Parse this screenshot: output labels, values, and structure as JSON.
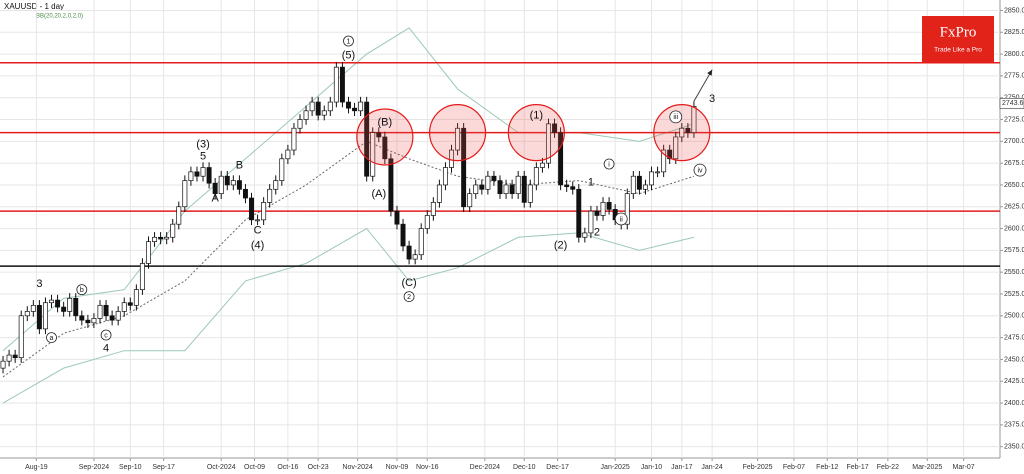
{
  "chart_data": {
    "type": "candlestick",
    "title": "XAUUSD - 1 day",
    "subtitle": "BB(20,20,2,0,2,0)",
    "brand": {
      "name": "FxPro",
      "tagline": "Trade Like a Pro"
    },
    "open": [
      2440,
      2448,
      2455,
      2452,
      2500,
      2505,
      2512,
      2485,
      2515,
      2518,
      2510,
      2505,
      2520,
      2500,
      2495,
      2492,
      2497,
      2512,
      2500,
      2495,
      2505,
      2515,
      2512,
      2530,
      2560,
      2585,
      2590,
      2588,
      2590,
      2605,
      2625,
      2655,
      2665,
      2660,
      2670,
      2652,
      2640,
      2660,
      2650,
      2655,
      2645,
      2635,
      2610,
      2610,
      2630,
      2645,
      2655,
      2680,
      2690,
      2715,
      2725,
      2735,
      2745,
      2730,
      2735,
      2745,
      2785,
      2745,
      2738,
      2735,
      2745,
      2660,
      2710,
      2705,
      2680,
      2620,
      2605,
      2580,
      2565,
      2570,
      2600,
      2615,
      2630,
      2650,
      2670,
      2690,
      2715,
      2625,
      2640,
      2650,
      2645,
      2660,
      2655,
      2640,
      2650,
      2640,
      2660,
      2630,
      2650,
      2670,
      2675,
      2720,
      2710,
      2650,
      2648,
      2645,
      2590,
      2595,
      2620,
      2615,
      2630,
      2622,
      2610,
      2605,
      2640,
      2660,
      2645,
      2650,
      2665,
      2665,
      2690,
      2680,
      2705,
      2715,
      2710
    ],
    "high": [
      2454,
      2461,
      2461,
      2506,
      2511,
      2518,
      2518,
      2521,
      2524,
      2524,
      2516,
      2526,
      2526,
      2506,
      2501,
      2503,
      2518,
      2518,
      2506,
      2511,
      2521,
      2521,
      2536,
      2566,
      2591,
      2596,
      2596,
      2596,
      2611,
      2631,
      2661,
      2671,
      2671,
      2676,
      2676,
      2658,
      2666,
      2666,
      2661,
      2661,
      2651,
      2641,
      2616,
      2636,
      2651,
      2661,
      2686,
      2696,
      2721,
      2731,
      2741,
      2751,
      2751,
      2741,
      2751,
      2791,
      2791,
      2751,
      2744,
      2751,
      2751,
      2716,
      2716,
      2711,
      2686,
      2626,
      2611,
      2586,
      2576,
      2606,
      2621,
      2636,
      2656,
      2676,
      2696,
      2721,
      2721,
      2646,
      2656,
      2656,
      2666,
      2666,
      2661,
      2656,
      2656,
      2666,
      2666,
      2656,
      2676,
      2681,
      2726,
      2726,
      2716,
      2656,
      2654,
      2651,
      2601,
      2626,
      2626,
      2636,
      2636,
      2628,
      2616,
      2646,
      2666,
      2666,
      2656,
      2671,
      2671,
      2696,
      2696,
      2711,
      2721,
      2721,
      2746
    ],
    "low": [
      2434,
      2442,
      2446,
      2446,
      2494,
      2499,
      2479,
      2479,
      2509,
      2504,
      2499,
      2499,
      2494,
      2489,
      2486,
      2486,
      2491,
      2494,
      2489,
      2489,
      2499,
      2506,
      2506,
      2524,
      2554,
      2579,
      2582,
      2582,
      2584,
      2599,
      2619,
      2649,
      2654,
      2654,
      2646,
      2634,
      2634,
      2644,
      2644,
      2639,
      2629,
      2604,
      2604,
      2604,
      2624,
      2639,
      2649,
      2674,
      2684,
      2709,
      2719,
      2729,
      2724,
      2724,
      2729,
      2739,
      2739,
      2732,
      2729,
      2729,
      2654,
      2654,
      2699,
      2674,
      2614,
      2599,
      2574,
      2559,
      2559,
      2564,
      2594,
      2609,
      2624,
      2644,
      2664,
      2684,
      2619,
      2619,
      2634,
      2639,
      2639,
      2649,
      2634,
      2634,
      2634,
      2634,
      2624,
      2624,
      2644,
      2664,
      2669,
      2704,
      2644,
      2642,
      2639,
      2584,
      2584,
      2589,
      2609,
      2609,
      2616,
      2604,
      2599,
      2599,
      2634,
      2639,
      2639,
      2644,
      2659,
      2659,
      2674,
      2674,
      2699,
      2704,
      2704
    ],
    "close": [
      2448,
      2455,
      2452,
      2500,
      2505,
      2512,
      2485,
      2515,
      2518,
      2510,
      2505,
      2520,
      2500,
      2495,
      2492,
      2497,
      2512,
      2500,
      2495,
      2505,
      2515,
      2512,
      2530,
      2560,
      2585,
      2590,
      2588,
      2590,
      2605,
      2625,
      2655,
      2665,
      2660,
      2670,
      2652,
      2640,
      2660,
      2650,
      2655,
      2645,
      2635,
      2610,
      2610,
      2630,
      2645,
      2655,
      2680,
      2690,
      2715,
      2725,
      2735,
      2745,
      2730,
      2735,
      2745,
      2785,
      2745,
      2738,
      2735,
      2745,
      2660,
      2710,
      2705,
      2680,
      2620,
      2605,
      2580,
      2565,
      2570,
      2600,
      2615,
      2630,
      2650,
      2670,
      2690,
      2715,
      2625,
      2640,
      2650,
      2645,
      2660,
      2655,
      2640,
      2650,
      2640,
      2660,
      2630,
      2650,
      2670,
      2675,
      2720,
      2710,
      2650,
      2648,
      2645,
      2590,
      2595,
      2620,
      2615,
      2630,
      2622,
      2610,
      2605,
      2640,
      2660,
      2645,
      2650,
      2665,
      2665,
      2690,
      2680,
      2705,
      2715,
      2710,
      2740
    ],
    "bands": {
      "x": [
        0,
        10,
        20,
        30,
        40,
        50,
        60,
        67,
        75,
        85,
        95,
        105,
        114
      ],
      "upper": [
        2460,
        2520,
        2530,
        2620,
        2680,
        2740,
        2800,
        2830,
        2760,
        2710,
        2710,
        2700,
        2720
      ],
      "middle": [
        2430,
        2480,
        2500,
        2540,
        2610,
        2650,
        2700,
        2680,
        2660,
        2650,
        2655,
        2640,
        2660
      ],
      "lower": [
        2400,
        2440,
        2460,
        2460,
        2540,
        2560,
        2600,
        2540,
        2555,
        2590,
        2595,
        2575,
        2590
      ]
    },
    "levels": [
      {
        "value": 2790,
        "color": "#e31b1b"
      },
      {
        "value": 2710,
        "color": "#e31b1b"
      },
      {
        "value": 2620,
        "color": "#e31b1b"
      },
      {
        "value": 2557,
        "color": "#111111"
      }
    ],
    "highlights": [
      {
        "x": 63,
        "y": 2705
      },
      {
        "x": 75,
        "y": 2710
      },
      {
        "x": 88,
        "y": 2710
      },
      {
        "x": 112,
        "y": 2710
      }
    ],
    "arrow": {
      "x": [
        114,
        117
      ],
      "y": [
        2746,
        2782
      ]
    },
    "annotations": [
      {
        "text": "3",
        "x": 6,
        "y": 2537
      },
      {
        "text": "a",
        "x": 8,
        "y": 2475,
        "circled": true
      },
      {
        "text": "b",
        "x": 13,
        "y": 2530,
        "circled": true
      },
      {
        "text": "c",
        "x": 17,
        "y": 2478,
        "circled": true
      },
      {
        "text": "4",
        "x": 17,
        "y": 2463
      },
      {
        "text": "(3)",
        "x": 33,
        "y": 2697
      },
      {
        "text": "5",
        "x": 33,
        "y": 2683
      },
      {
        "text": "A",
        "x": 35,
        "y": 2635
      },
      {
        "text": "B",
        "x": 39,
        "y": 2673
      },
      {
        "text": "C",
        "x": 42,
        "y": 2598
      },
      {
        "text": "(4)",
        "x": 42,
        "y": 2581
      },
      {
        "text": "1",
        "x": 57,
        "y": 2815,
        "circled": true
      },
      {
        "text": "(5)",
        "x": 57,
        "y": 2799
      },
      {
        "text": "(B)",
        "x": 63,
        "y": 2722
      },
      {
        "text": "(A)",
        "x": 62,
        "y": 2640
      },
      {
        "text": "(C)",
        "x": 67,
        "y": 2538
      },
      {
        "text": "2",
        "x": 67,
        "y": 2522,
        "circled": true
      },
      {
        "text": "(1)",
        "x": 88,
        "y": 2730
      },
      {
        "text": "(2)",
        "x": 92,
        "y": 2581
      },
      {
        "text": "1",
        "x": 97,
        "y": 2653
      },
      {
        "text": "2",
        "x": 98,
        "y": 2596
      },
      {
        "text": "i",
        "x": 100,
        "y": 2674,
        "circled": true
      },
      {
        "text": "ii",
        "x": 102,
        "y": 2611,
        "circled": true
      },
      {
        "text": "iii",
        "x": 111,
        "y": 2728,
        "circled": true
      },
      {
        "text": "iv",
        "x": 115,
        "y": 2667,
        "circled": true
      },
      {
        "text": "3",
        "x": 117,
        "y": 2749
      }
    ],
    "last_price": {
      "value": 2743.6,
      "label": "2743.60"
    },
    "xlim": [
      -0.5,
      164.5
    ],
    "ylim": [
      2337,
      2862
    ],
    "xticks": [
      {
        "value": 5.5,
        "label": "Aug-19"
      },
      {
        "value": 15,
        "label": "Sep-2024"
      },
      {
        "value": 21,
        "label": "Sep-10"
      },
      {
        "value": 26.5,
        "label": "Sep-17"
      },
      {
        "value": 36,
        "label": "Oct-2024"
      },
      {
        "value": 41.5,
        "label": "Oct-09"
      },
      {
        "value": 47,
        "label": "Oct-16"
      },
      {
        "value": 52,
        "label": "Oct-23"
      },
      {
        "value": 58.5,
        "label": "Nov-2024"
      },
      {
        "value": 65,
        "label": "Nov-09"
      },
      {
        "value": 70,
        "label": "Nov-16"
      },
      {
        "value": 79.5,
        "label": "Dec-2024"
      },
      {
        "value": 86,
        "label": "Dec-10"
      },
      {
        "value": 91.5,
        "label": "Dec-17"
      },
      {
        "value": 101,
        "label": "Jan-2025"
      },
      {
        "value": 107,
        "label": "Jan-10"
      },
      {
        "value": 112,
        "label": "Jan-17"
      },
      {
        "value": 117,
        "label": "Jan-24"
      },
      {
        "value": 124.5,
        "label": "Feb-2025"
      },
      {
        "value": 130.5,
        "label": "Feb-07"
      },
      {
        "value": 136,
        "label": "Feb-12"
      },
      {
        "value": 141,
        "label": "Feb-17"
      },
      {
        "value": 146,
        "label": "Feb-22"
      },
      {
        "value": 152.5,
        "label": "Mar-2025"
      },
      {
        "value": 158.5,
        "label": "Mar-07"
      }
    ],
    "yticks": [
      {
        "value": 2350,
        "label": "2350.00"
      },
      {
        "value": 2375,
        "label": "2375.00"
      },
      {
        "value": 2400,
        "label": "2400.00"
      },
      {
        "value": 2425,
        "label": "2425.00"
      },
      {
        "value": 2450,
        "label": "2450.00"
      },
      {
        "value": 2475,
        "label": "2475.00"
      },
      {
        "value": 2500,
        "label": "2500.00"
      },
      {
        "value": 2525,
        "label": "2525.00"
      },
      {
        "value": 2550,
        "label": "2550.00"
      },
      {
        "value": 2575,
        "label": "2575.00"
      },
      {
        "value": 2600,
        "label": "2600.00"
      },
      {
        "value": 2625,
        "label": "2625.00"
      },
      {
        "value": 2650,
        "label": "2650.00"
      },
      {
        "value": 2675,
        "label": "2675.00"
      },
      {
        "value": 2700,
        "label": "2700.00"
      },
      {
        "value": 2725,
        "label": "2725.00"
      },
      {
        "value": 2750,
        "label": "2750.00"
      },
      {
        "value": 2775,
        "label": "2775.00"
      },
      {
        "value": 2800,
        "label": "2800.00"
      },
      {
        "value": 2825,
        "label": "2825.00"
      },
      {
        "value": 2850,
        "label": "2850.00"
      }
    ],
    "grid": true
  }
}
